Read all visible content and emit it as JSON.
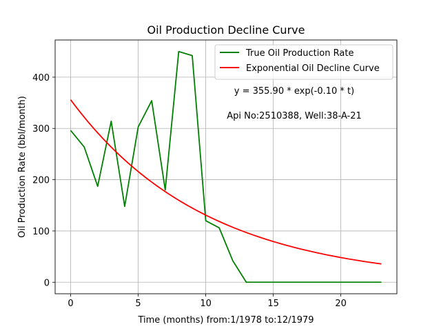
{
  "chart_data": {
    "type": "line",
    "title": "Oil Production Decline Curve",
    "xlabel": "Time (months) from:1/1978 to:12/1979",
    "ylabel": "Oil Production Rate (bbl/month)",
    "xlim": [
      -1.15,
      24.15
    ],
    "ylim": [
      -22.5,
      472.5
    ],
    "xticks": [
      0,
      5,
      10,
      15,
      20
    ],
    "yticks": [
      0,
      100,
      200,
      300,
      400
    ],
    "grid": true,
    "legend_position": "top-right",
    "annotations": [
      "y = 355.90 * exp(-0.10 * t)",
      "Api No:2510388, Well:38-A-21"
    ],
    "series": [
      {
        "name": "True Oil Production Rate",
        "color": "#008000",
        "kind": "data",
        "x": [
          0,
          1,
          2,
          3,
          4,
          5,
          6,
          7,
          8,
          9,
          10,
          11,
          12,
          13,
          14,
          15,
          16,
          17,
          18,
          19,
          20,
          21,
          22,
          23
        ],
        "y": [
          296,
          264,
          187,
          314,
          148,
          303,
          354,
          180,
          450,
          442,
          120,
          106,
          42,
          0,
          0,
          0,
          0,
          0,
          0,
          0,
          0,
          0,
          0,
          0
        ]
      },
      {
        "name": "Exponential Oil Decline Curve",
        "color": "#ff0000",
        "kind": "exponential",
        "a": 355.9,
        "b": -0.1,
        "x_range": [
          0,
          23
        ]
      }
    ]
  }
}
